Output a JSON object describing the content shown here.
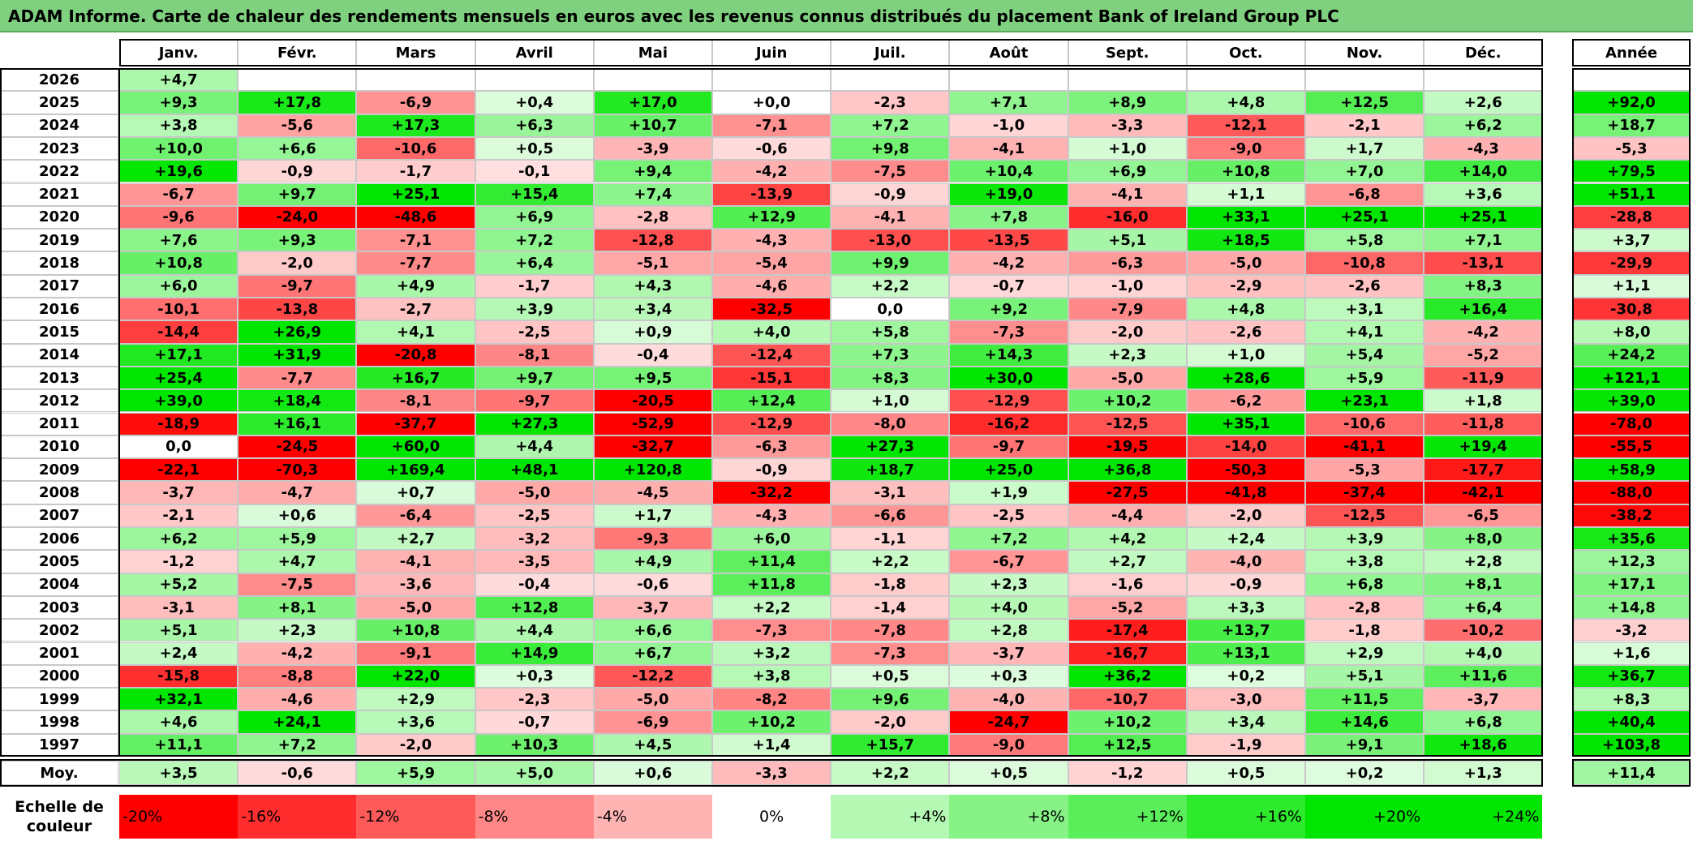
{
  "title": "ADAM Informe. Carte de chaleur des rendements mensuels en euros avec les revenus connus distribués du placement Bank of Ireland Group PLC",
  "chart_data": {
    "type": "heatmap",
    "title": "ADAM Informe. Carte de chaleur des rendements mensuels en euros avec les revenus connus distribués du placement Bank of Ireland Group PLC",
    "columns": [
      "Janv.",
      "Févr.",
      "Mars",
      "Avril",
      "Mai",
      "Juin",
      "Juil.",
      "Août",
      "Sept.",
      "Oct.",
      "Nov.",
      "Déc."
    ],
    "year_column_label": "Année",
    "rows": [
      {
        "year": "2026",
        "values": [
          "+4,7",
          "",
          "",
          "",
          "",
          "",
          "",
          "",
          "",
          "",
          "",
          ""
        ],
        "annual": ""
      },
      {
        "year": "2025",
        "values": [
          "+9,3",
          "+17,8",
          "-6,9",
          "+0,4",
          "+17,0",
          "+0,0",
          "-2,3",
          "+7,1",
          "+8,9",
          "+4,8",
          "+12,5",
          "+2,6"
        ],
        "annual": "+92,0"
      },
      {
        "year": "2024",
        "values": [
          "+3,8",
          "-5,6",
          "+17,3",
          "+6,3",
          "+10,7",
          "-7,1",
          "+7,2",
          "-1,0",
          "-3,3",
          "-12,1",
          "-2,1",
          "+6,2"
        ],
        "annual": "+18,7"
      },
      {
        "year": "2023",
        "values": [
          "+10,0",
          "+6,6",
          "-10,6",
          "+0,5",
          "-3,9",
          "-0,6",
          "+9,8",
          "-4,1",
          "+1,0",
          "-9,0",
          "+1,7",
          "-4,3"
        ],
        "annual": "-5,3"
      },
      {
        "year": "2022",
        "values": [
          "+19,6",
          "-0,9",
          "-1,7",
          "-0,1",
          "+9,4",
          "-4,2",
          "-7,5",
          "+10,4",
          "+6,9",
          "+10,8",
          "+7,0",
          "+14,0"
        ],
        "annual": "+79,5"
      },
      {
        "year": "2021",
        "values": [
          "-6,7",
          "+9,7",
          "+25,1",
          "+15,4",
          "+7,4",
          "-13,9",
          "-0,9",
          "+19,0",
          "-4,1",
          "+1,1",
          "-6,8",
          "+3,6"
        ],
        "annual": "+51,1"
      },
      {
        "year": "2020",
        "values": [
          "-9,6",
          "-24,0",
          "-48,6",
          "+6,9",
          "-2,8",
          "+12,9",
          "-4,1",
          "+7,8",
          "-16,0",
          "+33,1",
          "+25,1",
          "+25,1"
        ],
        "annual": "-28,8"
      },
      {
        "year": "2019",
        "values": [
          "+7,6",
          "+9,3",
          "-7,1",
          "+7,2",
          "-12,8",
          "-4,3",
          "-13,0",
          "-13,5",
          "+5,1",
          "+18,5",
          "+5,8",
          "+7,1"
        ],
        "annual": "+3,7"
      },
      {
        "year": "2018",
        "values": [
          "+10,8",
          "-2,0",
          "-7,7",
          "+6,4",
          "-5,1",
          "-5,4",
          "+9,9",
          "-4,2",
          "-6,3",
          "-5,0",
          "-10,8",
          "-13,1"
        ],
        "annual": "-29,9"
      },
      {
        "year": "2017",
        "values": [
          "+6,0",
          "-9,7",
          "+4,9",
          "-1,7",
          "+4,3",
          "-4,6",
          "+2,2",
          "-0,7",
          "-1,0",
          "-2,9",
          "-2,6",
          "+8,3"
        ],
        "annual": "+1,1"
      },
      {
        "year": "2016",
        "values": [
          "-10,1",
          "-13,8",
          "-2,7",
          "+3,9",
          "+3,4",
          "-32,5",
          "0,0",
          "+9,2",
          "-7,9",
          "+4,8",
          "+3,1",
          "+16,4"
        ],
        "annual": "-30,8"
      },
      {
        "year": "2015",
        "values": [
          "-14,4",
          "+26,9",
          "+4,1",
          "-2,5",
          "+0,9",
          "+4,0",
          "+5,8",
          "-7,3",
          "-2,0",
          "-2,6",
          "+4,1",
          "-4,2"
        ],
        "annual": "+8,0"
      },
      {
        "year": "2014",
        "values": [
          "+17,1",
          "+31,9",
          "-20,8",
          "-8,1",
          "-0,4",
          "-12,4",
          "+7,3",
          "+14,3",
          "+2,3",
          "+1,0",
          "+5,4",
          "-5,2"
        ],
        "annual": "+24,2"
      },
      {
        "year": "2013",
        "values": [
          "+25,4",
          "-7,7",
          "+16,7",
          "+9,7",
          "+9,5",
          "-15,1",
          "+8,3",
          "+30,0",
          "-5,0",
          "+28,6",
          "+5,9",
          "-11,9"
        ],
        "annual": "+121,1"
      },
      {
        "year": "2012",
        "values": [
          "+39,0",
          "+18,4",
          "-8,1",
          "-9,7",
          "-20,5",
          "+12,4",
          "+1,0",
          "-12,9",
          "+10,2",
          "-6,2",
          "+23,1",
          "+1,8"
        ],
        "annual": "+39,0"
      },
      {
        "year": "2011",
        "values": [
          "-18,9",
          "+16,1",
          "-37,7",
          "+27,3",
          "-52,9",
          "-12,9",
          "-8,0",
          "-16,2",
          "-12,5",
          "+35,1",
          "-10,6",
          "-11,8"
        ],
        "annual": "-78,0"
      },
      {
        "year": "2010",
        "values": [
          "0,0",
          "-24,5",
          "+60,0",
          "+4,4",
          "-32,7",
          "-6,3",
          "+27,3",
          "-9,7",
          "-19,5",
          "-14,0",
          "-41,1",
          "+19,4"
        ],
        "annual": "-55,5"
      },
      {
        "year": "2009",
        "values": [
          "-22,1",
          "-70,3",
          "+169,4",
          "+48,1",
          "+120,8",
          "-0,9",
          "+18,7",
          "+25,0",
          "+36,8",
          "-50,3",
          "-5,3",
          "-17,7"
        ],
        "annual": "+58,9"
      },
      {
        "year": "2008",
        "values": [
          "-3,7",
          "-4,7",
          "+0,7",
          "-5,0",
          "-4,5",
          "-32,2",
          "-3,1",
          "+1,9",
          "-27,5",
          "-41,8",
          "-37,4",
          "-42,1"
        ],
        "annual": "-88,0"
      },
      {
        "year": "2007",
        "values": [
          "-2,1",
          "+0,6",
          "-6,4",
          "-2,5",
          "+1,7",
          "-4,3",
          "-6,6",
          "-2,5",
          "-4,4",
          "-2,0",
          "-12,5",
          "-6,5"
        ],
        "annual": "-38,2"
      },
      {
        "year": "2006",
        "values": [
          "+6,2",
          "+5,9",
          "+2,7",
          "-3,2",
          "-9,3",
          "+6,0",
          "-1,1",
          "+7,2",
          "+4,2",
          "+2,4",
          "+3,9",
          "+8,0"
        ],
        "annual": "+35,6"
      },
      {
        "year": "2005",
        "values": [
          "-1,2",
          "+4,7",
          "-4,1",
          "-3,5",
          "+4,9",
          "+11,4",
          "+2,2",
          "-6,7",
          "+2,7",
          "-4,0",
          "+3,8",
          "+2,8"
        ],
        "annual": "+12,3"
      },
      {
        "year": "2004",
        "values": [
          "+5,2",
          "-7,5",
          "-3,6",
          "-0,4",
          "-0,6",
          "+11,8",
          "-1,8",
          "+2,3",
          "-1,6",
          "-0,9",
          "+6,8",
          "+8,1"
        ],
        "annual": "+17,1"
      },
      {
        "year": "2003",
        "values": [
          "-3,1",
          "+8,1",
          "-5,0",
          "+12,8",
          "-3,7",
          "+2,2",
          "-1,4",
          "+4,0",
          "-5,2",
          "+3,3",
          "-2,8",
          "+6,4"
        ],
        "annual": "+14,8"
      },
      {
        "year": "2002",
        "values": [
          "+5,1",
          "+2,3",
          "+10,8",
          "+4,4",
          "+6,6",
          "-7,3",
          "-7,8",
          "+2,8",
          "-17,4",
          "+13,7",
          "-1,8",
          "-10,2"
        ],
        "annual": "-3,2"
      },
      {
        "year": "2001",
        "values": [
          "+2,4",
          "-4,2",
          "-9,1",
          "+14,9",
          "+6,7",
          "+3,2",
          "-7,3",
          "-3,7",
          "-16,7",
          "+13,1",
          "+2,9",
          "+4,0"
        ],
        "annual": "+1,6"
      },
      {
        "year": "2000",
        "values": [
          "-15,8",
          "-8,8",
          "+22,0",
          "+0,3",
          "-12,2",
          "+3,8",
          "+0,5",
          "+0,3",
          "+36,2",
          "+0,2",
          "+5,1",
          "+11,6"
        ],
        "annual": "+36,7"
      },
      {
        "year": "1999",
        "values": [
          "+32,1",
          "-4,6",
          "+2,9",
          "-2,3",
          "-5,0",
          "-8,2",
          "+9,6",
          "-4,0",
          "-10,7",
          "-3,0",
          "+11,5",
          "-3,7"
        ],
        "annual": "+8,3"
      },
      {
        "year": "1998",
        "values": [
          "+4,6",
          "+24,1",
          "+3,6",
          "-0,7",
          "-6,9",
          "+10,2",
          "-2,0",
          "-24,7",
          "+10,2",
          "+3,4",
          "+14,6",
          "+6,8"
        ],
        "annual": "+40,4"
      },
      {
        "year": "1997",
        "values": [
          "+11,1",
          "+7,2",
          "-2,0",
          "+10,3",
          "+4,5",
          "+1,4",
          "+15,7",
          "-9,0",
          "+12,5",
          "-1,9",
          "+9,1",
          "+18,6"
        ],
        "annual": "+103,8"
      }
    ],
    "average": {
      "label": "Moy.",
      "values": [
        "+3,5",
        "-0,6",
        "+5,9",
        "+5,0",
        "+0,6",
        "-3,3",
        "+2,2",
        "+0,5",
        "-1,2",
        "+0,5",
        "+0,2",
        "+1,3"
      ],
      "annual": "+11,4"
    },
    "color_scale": {
      "label": "Echelle de couleur",
      "stops": [
        "-20%",
        "-16%",
        "-12%",
        "-8%",
        "-4%",
        "0%",
        "+4%",
        "+8%",
        "+12%",
        "+16%",
        "+20%",
        "+24%"
      ]
    },
    "colors": {
      "negative": "#ff0000",
      "neutral": "#ffffff",
      "positive": "#00e600",
      "title_bar": "#7fd17f"
    }
  }
}
